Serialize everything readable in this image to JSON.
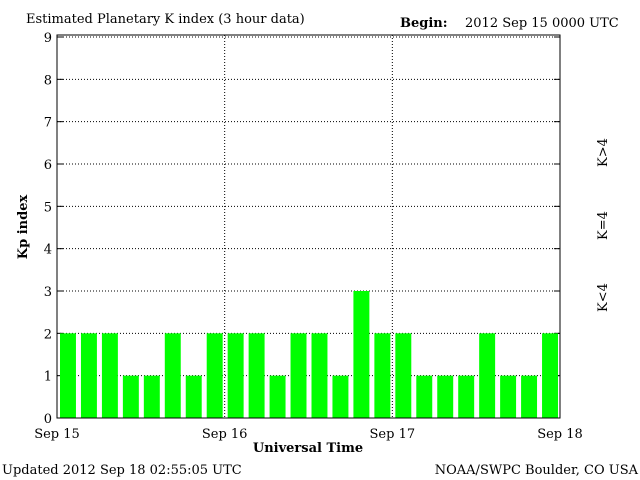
{
  "chart_data": {
    "type": "bar",
    "title": "Estimated Planetary K index (3 hour data)",
    "begin_label": "Begin:",
    "begin_value": "2012 Sep 15 0000 UTC",
    "xlabel": "Universal Time",
    "ylabel": "Kp index",
    "ylim": [
      0,
      9
    ],
    "yticks": [
      "0",
      "1",
      "2",
      "3",
      "4",
      "5",
      "6",
      "7",
      "8",
      "9"
    ],
    "xticks": [
      "Sep 15",
      "Sep 16",
      "Sep 17",
      "Sep 18"
    ],
    "grid": true,
    "bar_color": "#00ff00",
    "values": [
      2,
      2,
      2,
      1,
      1,
      2,
      1,
      2,
      2,
      2,
      1,
      2,
      2,
      1,
      3,
      2,
      2,
      1,
      1,
      1,
      2,
      1,
      1,
      2
    ],
    "legend": [
      {
        "label": "K>4",
        "color": "#ff2000"
      },
      {
        "label": "K=4",
        "color": "#ffd000"
      },
      {
        "label": "K<4",
        "color": "#00ff00"
      }
    ]
  },
  "footer": {
    "updated": "Updated 2012 Sep 18 02:55:05 UTC",
    "source": "NOAA/SWPC Boulder, CO USA"
  }
}
